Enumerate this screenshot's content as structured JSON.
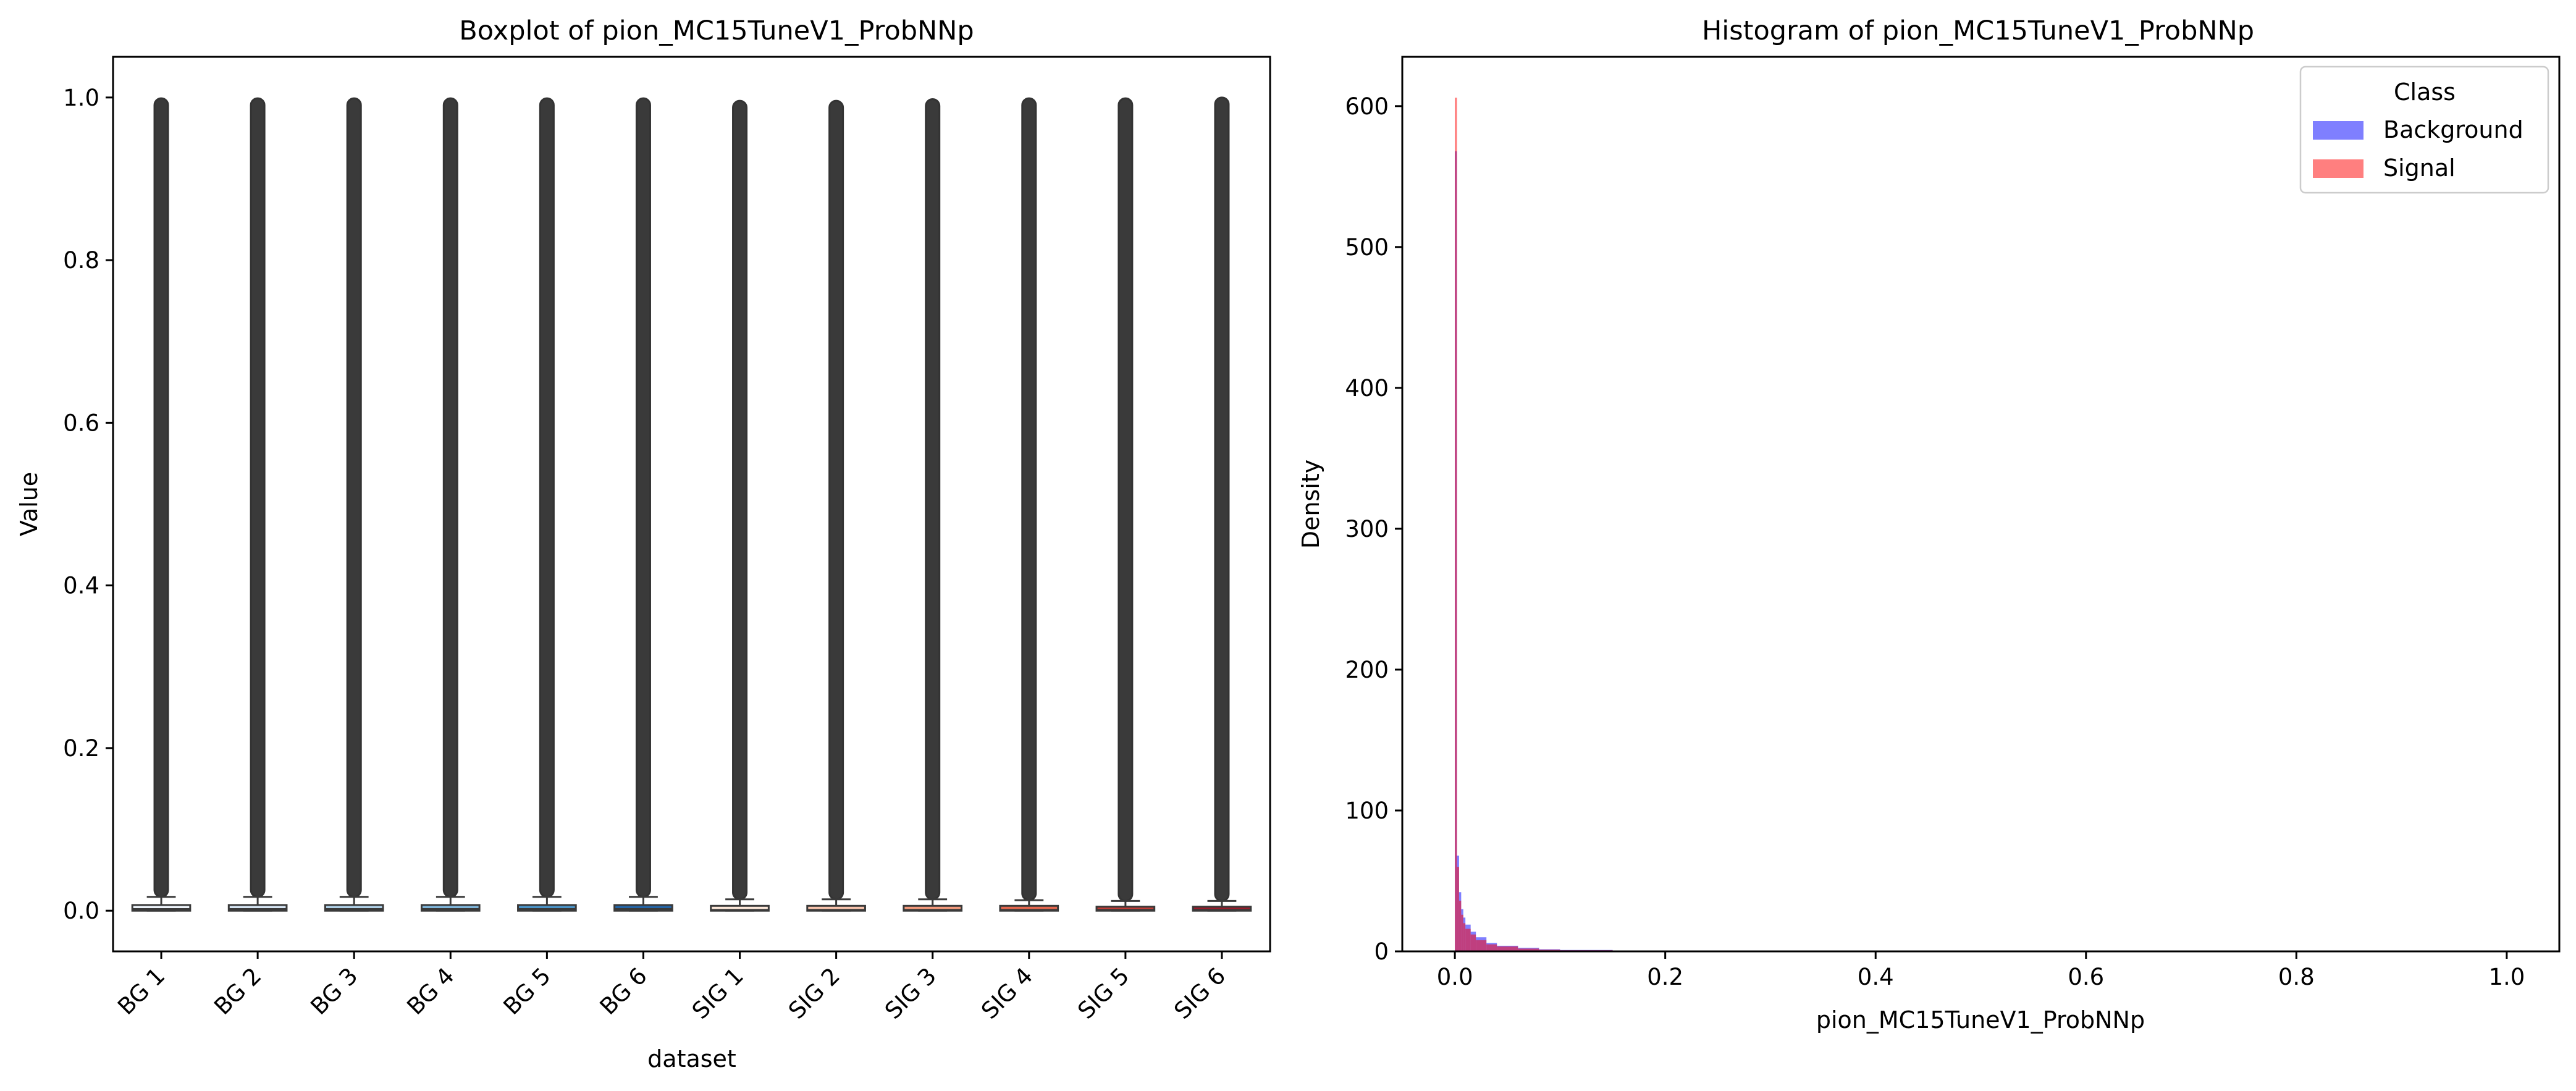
{
  "chart_data": [
    {
      "type": "box",
      "title": "Boxplot of pion_MC15TuneV1_ProbNNp",
      "xlabel": "dataset",
      "ylabel": "Value",
      "ylim": [
        -0.05,
        1.05
      ],
      "yticks": [
        "0.0",
        "0.2",
        "0.4",
        "0.6",
        "0.8",
        "1.0"
      ],
      "ytick_values": [
        0.0,
        0.2,
        0.4,
        0.6,
        0.8,
        1.0
      ],
      "categories": [
        "BG 1",
        "BG 2",
        "BG 3",
        "BG 4",
        "BG 5",
        "BG 6",
        "SIG 1",
        "SIG 2",
        "SIG 3",
        "SIG 4",
        "SIG 5",
        "SIG 6"
      ],
      "boxes": [
        {
          "q1": 0.0,
          "median": 0.002,
          "q3": 0.007,
          "whisker_low": 0.0,
          "whisker_high": 0.017,
          "outlier_max": 0.999,
          "color": "#eef4fb"
        },
        {
          "q1": 0.0,
          "median": 0.002,
          "q3": 0.007,
          "whisker_low": 0.0,
          "whisker_high": 0.017,
          "outlier_max": 0.999,
          "color": "#d6e5f3"
        },
        {
          "q1": 0.0,
          "median": 0.002,
          "q3": 0.007,
          "whisker_low": 0.0,
          "whisker_high": 0.017,
          "outlier_max": 0.999,
          "color": "#b0d1e8"
        },
        {
          "q1": 0.0,
          "median": 0.002,
          "q3": 0.007,
          "whisker_low": 0.0,
          "whisker_high": 0.017,
          "outlier_max": 0.999,
          "color": "#7fb6db"
        },
        {
          "q1": 0.0,
          "median": 0.002,
          "q3": 0.007,
          "whisker_low": 0.0,
          "whisker_high": 0.017,
          "outlier_max": 0.999,
          "color": "#4a94c9"
        },
        {
          "q1": 0.0,
          "median": 0.002,
          "q3": 0.007,
          "whisker_low": 0.0,
          "whisker_high": 0.017,
          "outlier_max": 0.999,
          "color": "#2365a8"
        },
        {
          "q1": 0.0,
          "median": 0.001,
          "q3": 0.006,
          "whisker_low": 0.0,
          "whisker_high": 0.014,
          "outlier_max": 0.996,
          "color": "#fde8da"
        },
        {
          "q1": 0.0,
          "median": 0.001,
          "q3": 0.006,
          "whisker_low": 0.0,
          "whisker_high": 0.014,
          "outlier_max": 0.996,
          "color": "#f9c4ad"
        },
        {
          "q1": 0.0,
          "median": 0.001,
          "q3": 0.006,
          "whisker_low": 0.0,
          "whisker_high": 0.014,
          "outlier_max": 0.998,
          "color": "#f49a7c"
        },
        {
          "q1": 0.0,
          "median": 0.001,
          "q3": 0.006,
          "whisker_low": 0.0,
          "whisker_high": 0.013,
          "outlier_max": 0.999,
          "color": "#e5674e"
        },
        {
          "q1": 0.0,
          "median": 0.001,
          "q3": 0.005,
          "whisker_low": 0.0,
          "whisker_high": 0.012,
          "outlier_max": 0.999,
          "color": "#c73c36"
        },
        {
          "q1": 0.0,
          "median": 0.001,
          "q3": 0.005,
          "whisker_low": 0.0,
          "whisker_high": 0.012,
          "outlier_max": 1.0,
          "color": "#9e1a2a"
        }
      ]
    },
    {
      "type": "histogram",
      "title": "Histogram of pion_MC15TuneV1_ProbNNp",
      "xlabel": "pion_MC15TuneV1_ProbNNp",
      "ylabel": "Density",
      "xlim": [
        -0.05,
        1.05
      ],
      "ylim": [
        0,
        635
      ],
      "xticks": [
        "0.0",
        "0.2",
        "0.4",
        "0.6",
        "0.8",
        "1.0"
      ],
      "xtick_values": [
        0.0,
        0.2,
        0.4,
        0.6,
        0.8,
        1.0
      ],
      "yticks": [
        "0",
        "100",
        "200",
        "300",
        "400",
        "500",
        "600"
      ],
      "ytick_values": [
        0,
        100,
        200,
        300,
        400,
        500,
        600
      ],
      "legend": {
        "title": "Class",
        "location": "upper right"
      },
      "series": [
        {
          "name": "Background",
          "color": "#0000ff",
          "opacity": 0.5,
          "x": [
            0.0,
            0.002,
            0.004,
            0.006,
            0.008,
            0.01,
            0.015,
            0.02,
            0.03,
            0.04,
            0.06,
            0.08,
            0.1,
            0.15,
            0.2,
            0.3,
            0.5,
            1.0
          ],
          "density": [
            568,
            68,
            42,
            30,
            24,
            19,
            14,
            10,
            6,
            4,
            2.5,
            1.5,
            1,
            0.6,
            0.4,
            0.2,
            0.1,
            0.05
          ]
        },
        {
          "name": "Signal",
          "color": "#ff0000",
          "opacity": 0.5,
          "x": [
            0.0,
            0.002,
            0.004,
            0.006,
            0.008,
            0.01,
            0.015,
            0.02,
            0.03,
            0.04,
            0.06,
            0.08,
            0.1,
            0.15,
            0.2,
            0.3,
            0.5,
            1.0
          ],
          "density": [
            606,
            60,
            36,
            26,
            20,
            16,
            12,
            8,
            5,
            3.5,
            2,
            1.2,
            0.8,
            0.5,
            0.3,
            0.15,
            0.08,
            0.04
          ]
        }
      ]
    }
  ]
}
